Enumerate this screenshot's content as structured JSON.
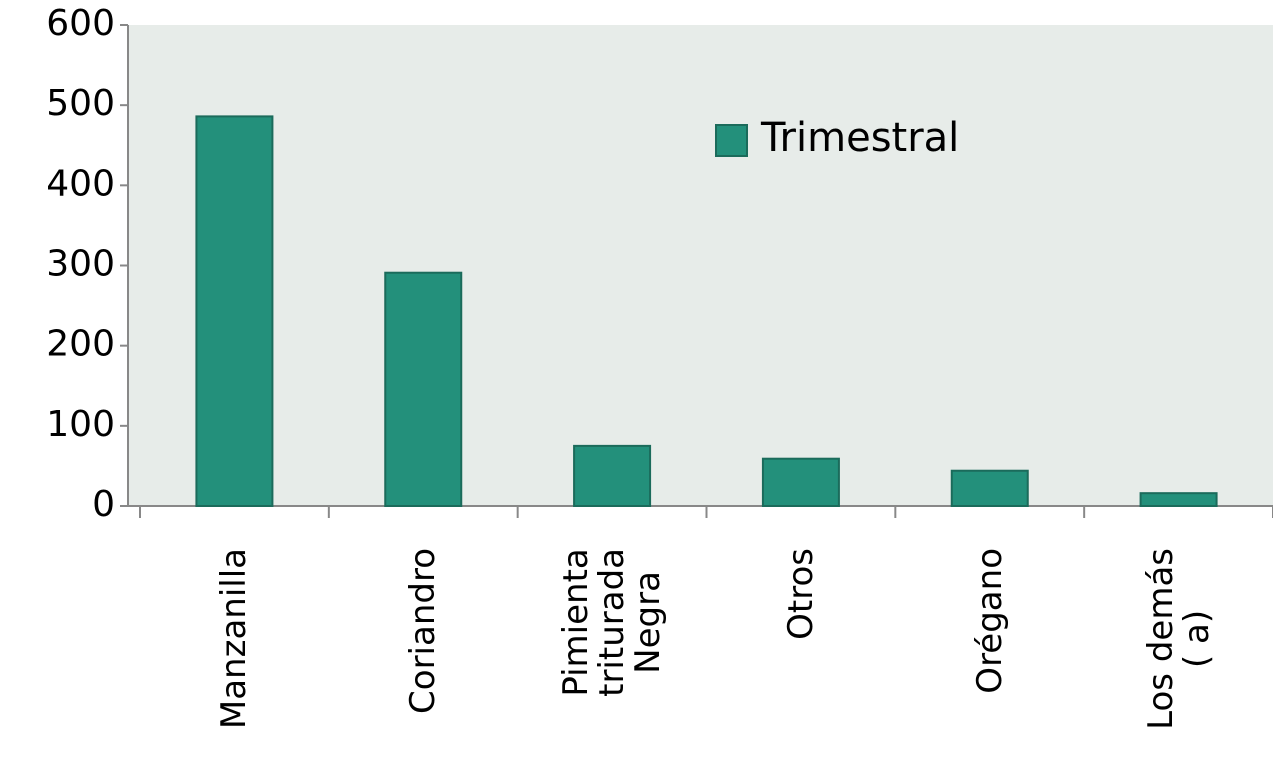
{
  "chart_data": {
    "type": "bar",
    "categories": [
      "Manzanilla",
      "Coriandro",
      "Pimienta\ntriturada\nNegra",
      "Otros",
      "Orégano",
      "Los demás\n( a)"
    ],
    "series": [
      {
        "name": "Trimestral",
        "color": "#23907b",
        "values": [
          486,
          291,
          75,
          59,
          44,
          16
        ]
      }
    ],
    "ylim": [
      0,
      600
    ],
    "yticks": [
      0,
      100,
      200,
      300,
      400,
      500,
      600
    ],
    "legend": "upper-right"
  }
}
